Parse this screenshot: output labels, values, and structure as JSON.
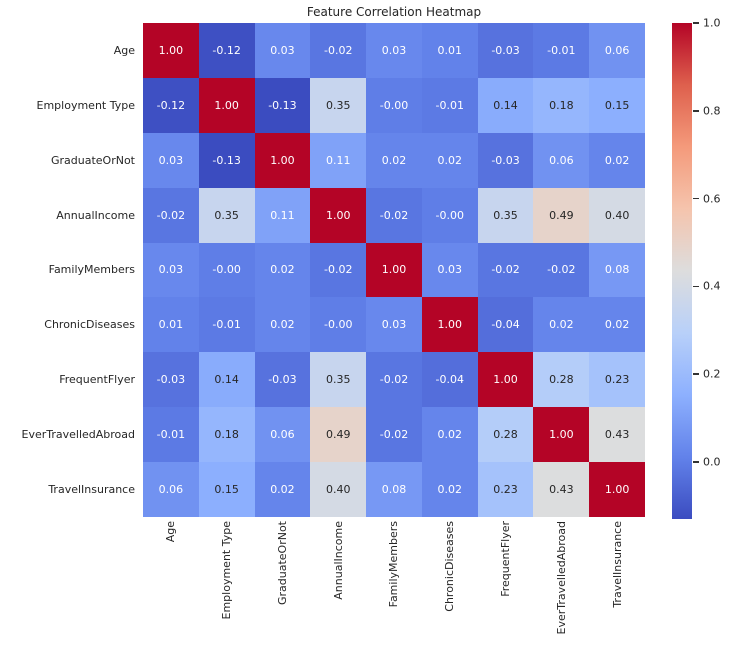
{
  "chart_data": {
    "type": "heatmap",
    "title": "Feature Correlation Heatmap",
    "labels": [
      "Age",
      "Employment Type",
      "GraduateOrNot",
      "AnnualIncome",
      "FamilyMembers",
      "ChronicDiseases",
      "FrequentFlyer",
      "EverTravelledAbroad",
      "TravelInsurance"
    ],
    "matrix": [
      [
        "1.00",
        "-0.12",
        "0.03",
        "-0.02",
        "0.03",
        "0.01",
        "-0.03",
        "-0.01",
        "0.06"
      ],
      [
        "-0.12",
        "1.00",
        "-0.13",
        "0.35",
        "-0.00",
        "-0.01",
        "0.14",
        "0.18",
        "0.15"
      ],
      [
        "0.03",
        "-0.13",
        "1.00",
        "0.11",
        "0.02",
        "0.02",
        "-0.03",
        "0.06",
        "0.02"
      ],
      [
        "-0.02",
        "0.35",
        "0.11",
        "1.00",
        "-0.02",
        "-0.00",
        "0.35",
        "0.49",
        "0.40"
      ],
      [
        "0.03",
        "-0.00",
        "0.02",
        "-0.02",
        "1.00",
        "0.03",
        "-0.02",
        "-0.02",
        "0.08"
      ],
      [
        "0.01",
        "-0.01",
        "0.02",
        "-0.00",
        "0.03",
        "1.00",
        "-0.04",
        "0.02",
        "0.02"
      ],
      [
        "-0.03",
        "0.14",
        "-0.03",
        "0.35",
        "-0.02",
        "-0.04",
        "1.00",
        "0.28",
        "0.23"
      ],
      [
        "-0.01",
        "0.18",
        "0.06",
        "0.49",
        "-0.02",
        "0.02",
        "0.28",
        "1.00",
        "0.43"
      ],
      [
        "0.06",
        "0.15",
        "0.02",
        "0.40",
        "0.08",
        "0.02",
        "0.23",
        "0.43",
        "1.00"
      ]
    ],
    "vmin": -0.13,
    "vmax": 1.0,
    "colormap": "coolwarm",
    "colormap_anchors": [
      "#3b4cc0",
      "#6282ea",
      "#8db0fe",
      "#b8d0f9",
      "#dddddd",
      "#f5c4ad",
      "#f49a7b",
      "#de604d",
      "#b40426"
    ],
    "annotation_text_light": "#ffffff",
    "annotation_text_dark": "#262626",
    "colorbar": {
      "position": "right",
      "ticks": [
        "1.0",
        "0.8",
        "0.6",
        "0.4",
        "0.2",
        "0.0"
      ]
    },
    "grid": false
  }
}
